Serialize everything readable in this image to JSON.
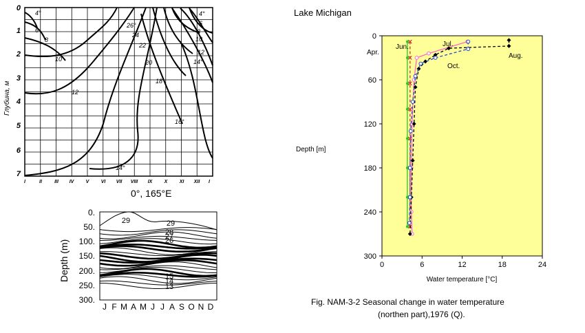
{
  "left_top": {
    "caption": "0°, 165°E",
    "ylabel": "Глубина, м",
    "y_ticks": [
      "0",
      "1",
      "2",
      "3",
      "4",
      "5",
      "6",
      "7"
    ],
    "x_ticks": [
      "I",
      "II",
      "III",
      "IV",
      "V",
      "VI",
      "VII",
      "VIII",
      "IX",
      "X",
      "XI",
      "XII",
      "I"
    ],
    "isoline_labels": [
      "4°",
      "6",
      "8",
      "10",
      "12",
      "14°",
      "16°",
      "18",
      "20",
      "22",
      "24",
      "26°",
      "4°",
      "6",
      "8",
      "10",
      "12",
      "14°"
    ]
  },
  "left_bottom": {
    "ylabel": "Depth (m)",
    "y_ticks": [
      "0.",
      "50.",
      "100.",
      "150.",
      "200.",
      "250.",
      "300."
    ],
    "x_ticks": [
      "J",
      "F",
      "M",
      "A",
      "M",
      "J",
      "J",
      "A",
      "S",
      "O",
      "N",
      "D"
    ],
    "contour_labels": [
      "29",
      "29",
      "28",
      "27",
      "26",
      "15",
      "14",
      "13"
    ]
  },
  "right": {
    "title": "Lake Michigan",
    "fig_caption_line1": "Fig. NAM-3-2  Seasonal change in water temperature",
    "fig_caption_line2": "(northen part),1976 (Q)."
  },
  "chart_data": [
    {
      "type": "line",
      "xlabel": "Water temperature [°C]",
      "ylabel": "Depth [m]",
      "xlim": [
        0,
        24
      ],
      "ylim": [
        300,
        0
      ],
      "x_ticks": [
        "0",
        "6",
        "12",
        "18",
        "24"
      ],
      "y_ticks": [
        "0",
        "60",
        "120",
        "180",
        "240",
        "300"
      ],
      "background": "#ffff99",
      "series": [
        {
          "name": "Apr.",
          "color": "#22cc22",
          "dash": "solid",
          "marker": "dot",
          "points": [
            [
              3.8,
              8
            ],
            [
              3.8,
              30
            ],
            [
              3.8,
              65
            ],
            [
              3.8,
              100
            ],
            [
              3.8,
              140
            ],
            [
              3.8,
              180
            ],
            [
              3.8,
              220
            ],
            [
              3.8,
              260
            ]
          ]
        },
        {
          "name": "Jun.",
          "color": "#cc3333",
          "dash": "dash",
          "marker": "x",
          "points": [
            [
              4.2,
              8
            ],
            [
              4.2,
              30
            ],
            [
              4.2,
              65
            ],
            [
              4.2,
              100
            ],
            [
              4.2,
              140
            ],
            [
              4.2,
              180
            ],
            [
              4.2,
              220
            ],
            [
              4.2,
              260
            ]
          ]
        },
        {
          "name": "Jul.",
          "color": "#ff66cc",
          "dash": "solid",
          "marker": "circle",
          "points": [
            [
              12.8,
              8
            ],
            [
              7,
              24
            ],
            [
              5.2,
              30
            ],
            [
              4.8,
              60
            ],
            [
              4.5,
              120
            ],
            [
              4.4,
              180
            ],
            [
              4.4,
              240
            ],
            [
              4.5,
              270
            ]
          ]
        },
        {
          "name": "Aug.",
          "color": "#000000",
          "dash": "dash",
          "marker": "diamond",
          "points": [
            [
              19,
              6
            ],
            [
              19,
              14
            ],
            [
              10,
              17
            ],
            [
              8,
              26
            ],
            [
              6.5,
              35
            ],
            [
              5.5,
              45
            ],
            [
              5,
              70
            ],
            [
              4.8,
              120
            ],
            [
              4.6,
              170
            ],
            [
              4.4,
              220
            ],
            [
              4.2,
              270
            ]
          ]
        },
        {
          "name": "Oct.",
          "color": "#2244cc",
          "dash": "dash",
          "marker": "circle",
          "points": [
            [
              12.9,
              8
            ],
            [
              12.9,
              18
            ],
            [
              8,
              30
            ],
            [
              5.8,
              38
            ],
            [
              5,
              55
            ],
            [
              4.6,
              90
            ],
            [
              4.3,
              130
            ],
            [
              4.2,
              180
            ],
            [
              4.2,
              220
            ],
            [
              4.1,
              255
            ]
          ]
        }
      ]
    }
  ]
}
